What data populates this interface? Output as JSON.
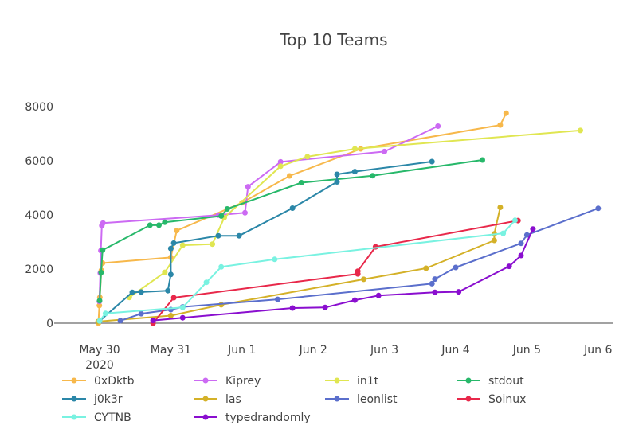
{
  "chart_data": {
    "type": "line",
    "title": "Top 10 Teams",
    "xlabel": "",
    "ylabel": "",
    "x_type": "date",
    "xlim": [
      "2020-05-29T20:00",
      "2020-06-06T04:00"
    ],
    "ylim": [
      0,
      8000
    ],
    "x_ticks": [
      {
        "value": "2020-05-30T00:00",
        "label": "May 30",
        "sublabel": "2020"
      },
      {
        "value": "2020-05-31T00:00",
        "label": "May 31"
      },
      {
        "value": "2020-06-01T00:00",
        "label": "Jun 1"
      },
      {
        "value": "2020-06-02T00:00",
        "label": "Jun 2"
      },
      {
        "value": "2020-06-03T00:00",
        "label": "Jun 3"
      },
      {
        "value": "2020-06-04T00:00",
        "label": "Jun 4"
      },
      {
        "value": "2020-06-05T00:00",
        "label": "Jun 5"
      },
      {
        "value": "2020-06-06T00:00",
        "label": "Jun 6"
      }
    ],
    "y_ticks": [
      0,
      2000,
      4000,
      6000,
      8000
    ],
    "grid": false,
    "legend_position": "bottom",
    "series": [
      {
        "name": "0xDktb",
        "color": "#f7b84b",
        "points": [
          [
            "2020-05-29T23:36",
            0
          ],
          [
            "2020-05-29T23:55",
            650
          ],
          [
            "2020-05-30T00:05",
            950
          ],
          [
            "2020-05-30T00:36",
            1950
          ],
          [
            "2020-05-30T01:00",
            2220
          ],
          [
            "2020-05-31T00:00",
            2430
          ],
          [
            "2020-05-31T02:00",
            3420
          ],
          [
            "2020-06-01T00:00",
            4450
          ],
          [
            "2020-06-01T16:00",
            5440
          ],
          [
            "2020-06-02T16:00",
            6440
          ],
          [
            "2020-06-04T15:00",
            7320
          ],
          [
            "2020-06-04T17:00",
            7760
          ]
        ]
      },
      {
        "name": "Kiprey",
        "color": "#cc6af3",
        "points": [
          [
            "2020-05-29T23:55",
            800
          ],
          [
            "2020-05-30T00:15",
            1850
          ],
          [
            "2020-05-30T00:25",
            2680
          ],
          [
            "2020-05-30T00:45",
            3600
          ],
          [
            "2020-05-30T01:10",
            3700
          ],
          [
            "2020-05-31T16:00",
            3990
          ],
          [
            "2020-06-01T01:00",
            4080
          ],
          [
            "2020-06-01T02:00",
            5040
          ],
          [
            "2020-06-01T13:00",
            5960
          ],
          [
            "2020-06-03T00:00",
            6340
          ],
          [
            "2020-06-03T18:00",
            7280
          ]
        ]
      },
      {
        "name": "in1t",
        "color": "#e0e651",
        "points": [
          [
            "2020-05-30T10:00",
            950
          ],
          [
            "2020-05-30T22:00",
            1880
          ],
          [
            "2020-05-31T04:00",
            2880
          ],
          [
            "2020-05-31T14:00",
            2920
          ],
          [
            "2020-05-31T18:00",
            3900
          ],
          [
            "2020-06-01T13:00",
            5800
          ],
          [
            "2020-06-01T22:00",
            6150
          ],
          [
            "2020-06-02T14:00",
            6440
          ],
          [
            "2020-06-05T18:00",
            7120
          ]
        ]
      },
      {
        "name": "stdout",
        "color": "#27b86a",
        "points": [
          [
            "2020-05-30T00:00",
            830
          ],
          [
            "2020-05-30T00:30",
            1870
          ],
          [
            "2020-05-30T01:00",
            2700
          ],
          [
            "2020-05-30T17:00",
            3620
          ],
          [
            "2020-05-30T20:00",
            3620
          ],
          [
            "2020-05-30T22:00",
            3730
          ],
          [
            "2020-05-31T17:00",
            3960
          ],
          [
            "2020-05-31T19:00",
            4220
          ],
          [
            "2020-06-01T20:00",
            5190
          ],
          [
            "2020-06-02T20:00",
            5450
          ],
          [
            "2020-06-04T09:00",
            6030
          ]
        ]
      },
      {
        "name": "j0k3r",
        "color": "#2b87a8",
        "points": [
          [
            "2020-05-30T00:00",
            80
          ],
          [
            "2020-05-30T11:00",
            1140
          ],
          [
            "2020-05-30T14:00",
            1150
          ],
          [
            "2020-05-30T23:00",
            1200
          ],
          [
            "2020-05-31T00:00",
            1800
          ],
          [
            "2020-05-31T00:00",
            2760
          ],
          [
            "2020-05-31T01:00",
            2960
          ],
          [
            "2020-05-31T16:00",
            3230
          ],
          [
            "2020-05-31T23:00",
            3230
          ],
          [
            "2020-06-01T17:00",
            4250
          ],
          [
            "2020-06-02T08:00",
            5220
          ],
          [
            "2020-06-02T08:00",
            5500
          ],
          [
            "2020-06-02T14:00",
            5600
          ],
          [
            "2020-06-03T16:00",
            5970
          ]
        ]
      },
      {
        "name": "las",
        "color": "#d4b128",
        "points": [
          [
            "2020-05-29T23:30",
            60
          ],
          [
            "2020-05-31T00:00",
            280
          ],
          [
            "2020-05-31T17:00",
            680
          ],
          [
            "2020-06-02T17:00",
            1620
          ],
          [
            "2020-06-03T14:00",
            2030
          ],
          [
            "2020-06-04T13:00",
            3060
          ],
          [
            "2020-06-04T13:00",
            3300
          ],
          [
            "2020-06-04T15:00",
            4280
          ]
        ]
      },
      {
        "name": "leonlist",
        "color": "#5b6fcc",
        "points": [
          [
            "2020-05-30T07:00",
            90
          ],
          [
            "2020-05-30T14:00",
            350
          ],
          [
            "2020-05-31T00:00",
            500
          ],
          [
            "2020-05-31T04:00",
            600
          ],
          [
            "2020-06-01T12:00",
            880
          ],
          [
            "2020-06-03T16:00",
            1460
          ],
          [
            "2020-06-03T17:00",
            1630
          ],
          [
            "2020-06-04T00:00",
            2060
          ],
          [
            "2020-06-04T22:00",
            2950
          ],
          [
            "2020-06-05T00:00",
            3260
          ],
          [
            "2020-06-06T00:00",
            4240
          ]
        ]
      },
      {
        "name": "Soinux",
        "color": "#e8284a",
        "points": [
          [
            "2020-05-30T18:00",
            0
          ],
          [
            "2020-05-31T01:00",
            940
          ],
          [
            "2020-06-02T15:00",
            1820
          ],
          [
            "2020-06-02T15:00",
            1920
          ],
          [
            "2020-06-02T21:00",
            2820
          ],
          [
            "2020-06-04T21:00",
            3790
          ]
        ]
      },
      {
        "name": "CYTNB",
        "color": "#79f2e1",
        "points": [
          [
            "2020-05-30T00:00",
            80
          ],
          [
            "2020-05-30T02:00",
            360
          ],
          [
            "2020-05-31T04:00",
            580
          ],
          [
            "2020-05-31T12:00",
            1510
          ],
          [
            "2020-05-31T17:00",
            2080
          ],
          [
            "2020-06-01T11:00",
            2360
          ],
          [
            "2020-06-04T16:00",
            3320
          ],
          [
            "2020-06-04T20:00",
            3800
          ]
        ]
      },
      {
        "name": "typedrandomly",
        "color": "#8a0ecf",
        "points": [
          [
            "2020-05-30T18:00",
            100
          ],
          [
            "2020-05-31T04:00",
            200
          ],
          [
            "2020-06-01T17:00",
            560
          ],
          [
            "2020-06-02T04:00",
            580
          ],
          [
            "2020-06-02T14:00",
            850
          ],
          [
            "2020-06-02T22:00",
            1020
          ],
          [
            "2020-06-03T17:00",
            1140
          ],
          [
            "2020-06-04T01:00",
            1160
          ],
          [
            "2020-06-04T18:00",
            2100
          ],
          [
            "2020-06-04T22:00",
            2500
          ],
          [
            "2020-06-05T02:00",
            3480
          ]
        ]
      }
    ]
  }
}
